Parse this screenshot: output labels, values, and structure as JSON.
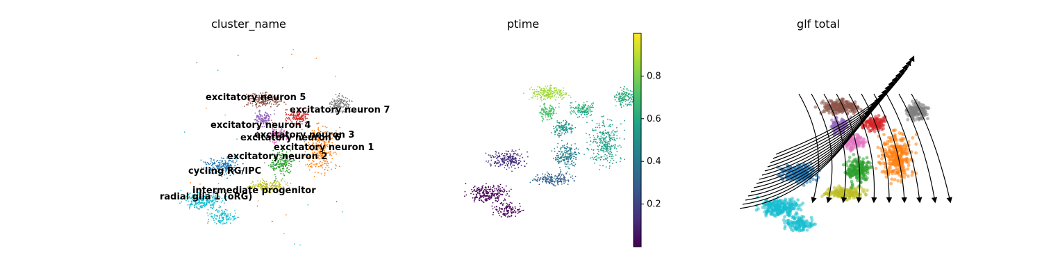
{
  "figure": {
    "panels": [
      "cluster_name",
      "ptime",
      "glf total"
    ]
  },
  "colors": {
    "radial glia 1 (oRG)": "#17becf",
    "cycling RG/IPC": "#1f77b4",
    "intermediate progenitor": "#bcbd22",
    "excitatory neuron 1": "#ff7f0e",
    "excitatory neuron 2": "#2ca02c",
    "excitatory neuron 3": "#d62728",
    "excitatory neuron 4": "#9467bd",
    "excitatory neuron 5": "#8c564b",
    "excitatory neuron 6": "#e377c2",
    "excitatory neuron 7": "#7f7f7f",
    "viridis": [
      "#440154",
      "#46327e",
      "#365c8d",
      "#277f8e",
      "#1fa187",
      "#4ac16d",
      "#a0da39",
      "#fde725"
    ]
  },
  "chart_data": [
    {
      "type": "scatter",
      "title": "cluster_name",
      "categories": [
        "excitatory neuron 5",
        "excitatory neuron 7",
        "excitatory neuron 4",
        "excitatory neuron 3",
        "excitatory neuron 6",
        "excitatory neuron 1",
        "excitatory neuron 2",
        "cycling RG/IPC",
        "intermediate progenitor",
        "radial glia 1 (oRG)"
      ],
      "annotations": [
        "excitatory neuron 5",
        "excitatory neuron 7",
        "excitatory neuron 4",
        "excitatory neuron 3",
        "excitatory neuron 6",
        "excitatory neuron 1",
        "excitatory neuron 2",
        "cycling RG/IPC",
        "intermediate progenitor",
        "radial glia 1 (oRG)"
      ],
      "axes": "off",
      "grid": false
    },
    {
      "type": "scatter",
      "title": "ptime",
      "colormap": "viridis",
      "colorbar": {
        "range": [
          0,
          1
        ],
        "ticks": [
          "0.2",
          "0.4",
          "0.6",
          "0.8"
        ],
        "tick_values": [
          0.2,
          0.4,
          0.6,
          0.8
        ]
      },
      "axes": "off",
      "grid": false
    },
    {
      "type": "scatter",
      "title": "glf total",
      "overlay": "velocity streamlines",
      "axes": "off",
      "grid": false
    }
  ]
}
